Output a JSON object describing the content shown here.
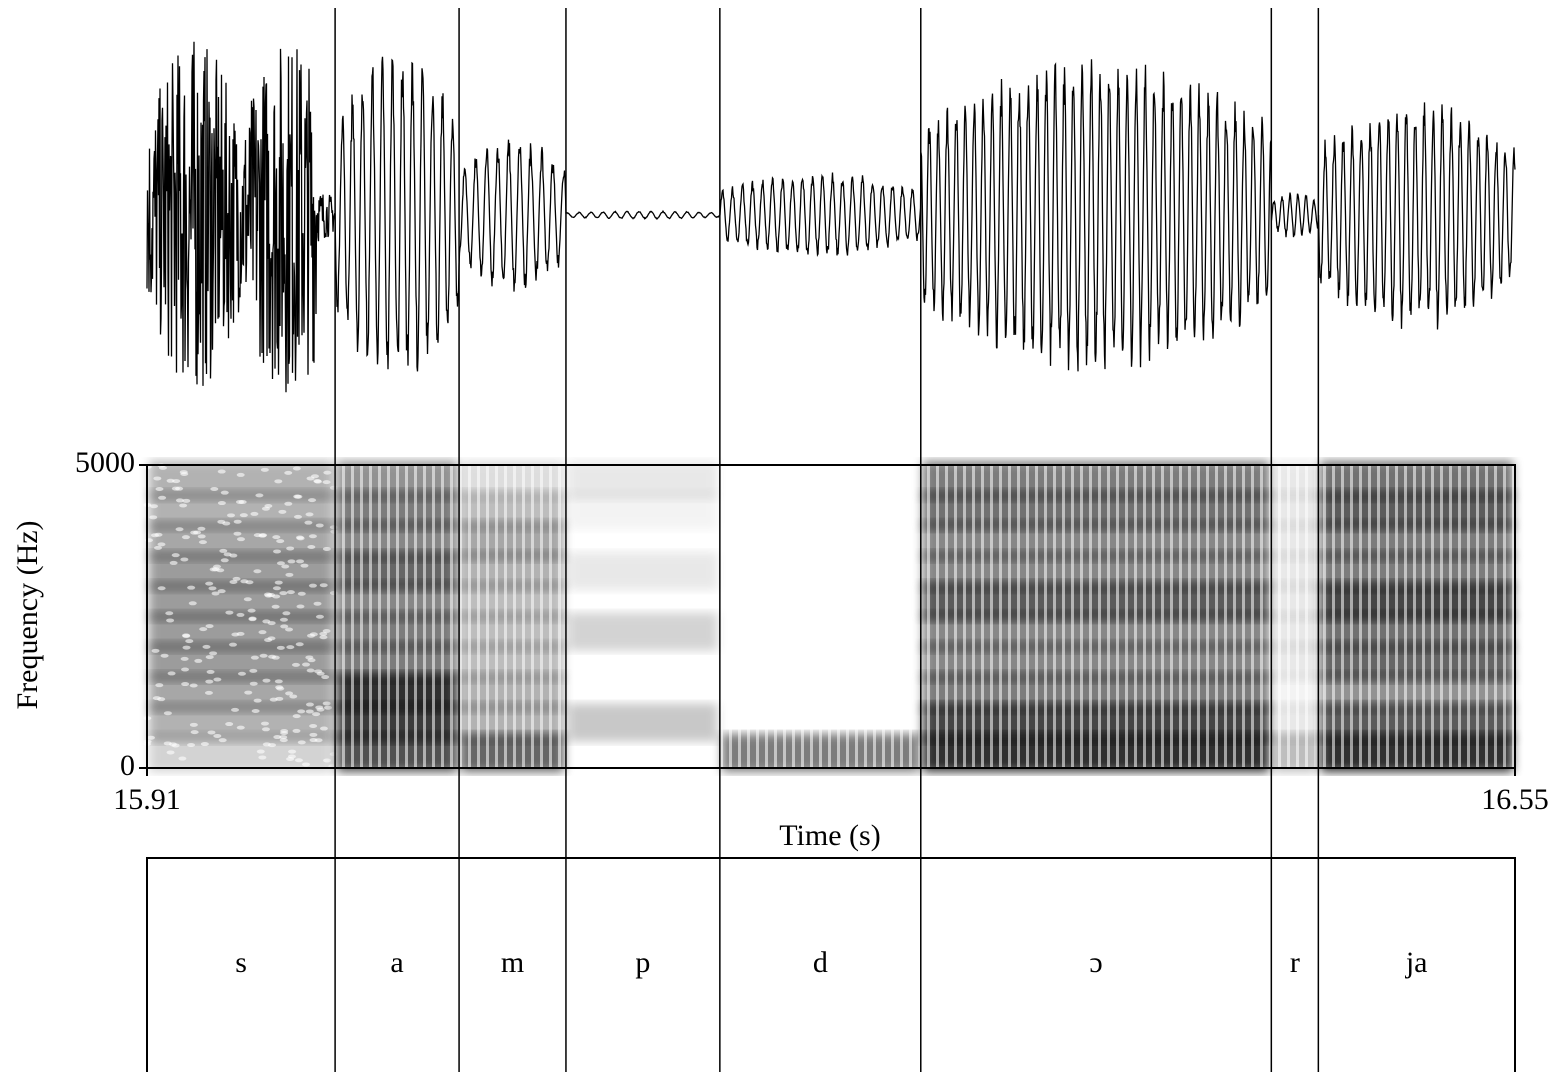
{
  "chart_data": {
    "type": "speech",
    "xlabel": "Time (s)",
    "ylabel": "Frequency (Hz)",
    "xlim": [
      15.91,
      16.55
    ],
    "xticks": [
      15.91,
      16.55
    ],
    "ylim": [
      0,
      5000
    ],
    "yticks": [
      0,
      5000
    ],
    "segments": {
      "labels": [
        "s",
        "a",
        "m",
        "p",
        "d",
        "ɔ",
        "r",
        "ja"
      ],
      "boundaries": [
        15.998,
        16.056,
        16.106,
        16.178,
        16.272,
        16.436,
        16.458
      ]
    }
  }
}
